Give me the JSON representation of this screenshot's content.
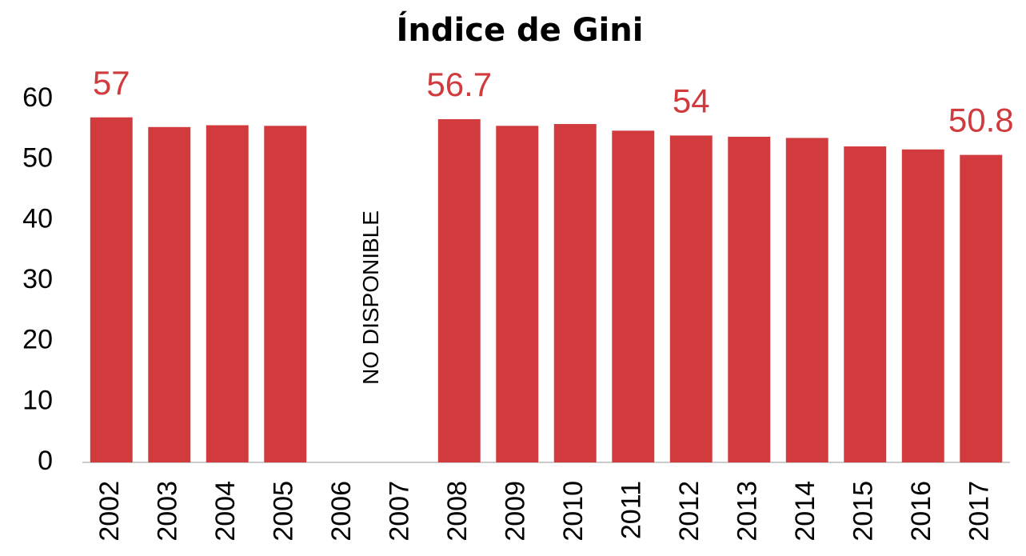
{
  "chart_data": {
    "type": "bar",
    "title": "Índice de Gini",
    "categories": [
      "2002",
      "2003",
      "2004",
      "2005",
      "2006",
      "2007",
      "2008",
      "2009",
      "2010",
      "2011",
      "2012",
      "2013",
      "2014",
      "2015",
      "2016",
      "2017"
    ],
    "values": [
      57,
      55.4,
      55.7,
      55.6,
      null,
      null,
      56.7,
      55.6,
      55.9,
      54.8,
      54,
      53.8,
      53.6,
      52.2,
      51.7,
      50.8
    ],
    "value_labels": [
      "57",
      null,
      null,
      null,
      null,
      null,
      "56.7",
      null,
      null,
      null,
      "54",
      null,
      null,
      null,
      null,
      "50.8"
    ],
    "annotation": "NO DISPONIBLE",
    "color": "#d13b3d",
    "ylim": [
      0,
      60
    ],
    "yticks": [
      0,
      10,
      20,
      30,
      40,
      50,
      60
    ],
    "grid": false
  }
}
